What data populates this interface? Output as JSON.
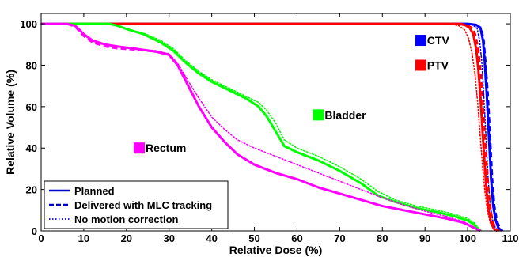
{
  "chart_data": {
    "type": "line",
    "xlabel": "Relative Dose (%)",
    "ylabel": "Relative Volume (%)",
    "xlim": [
      0,
      110
    ],
    "ylim": [
      0,
      105
    ],
    "xticks": [
      0,
      10,
      20,
      30,
      40,
      50,
      60,
      70,
      80,
      90,
      100,
      110
    ],
    "yticks": [
      0,
      20,
      40,
      60,
      80,
      100
    ],
    "grid": false,
    "legend_position": "bottom-left",
    "legend": [
      {
        "label": "Planned",
        "style": "solid"
      },
      {
        "label": "Delivered with MLC tracking",
        "style": "dashed"
      },
      {
        "label": "No motion correction",
        "style": "dotted"
      }
    ],
    "structures": [
      {
        "name": "CTV",
        "color": "#0000ff",
        "marker_at": [
          89,
          92
        ]
      },
      {
        "name": "PTV",
        "color": "#ff0000",
        "marker_at": [
          89,
          80
        ]
      },
      {
        "name": "Bladder",
        "color": "#00ff00",
        "marker_at": [
          65,
          56
        ]
      },
      {
        "name": "Rectum",
        "color": "#ff00ff",
        "marker_at": [
          23,
          40
        ]
      }
    ],
    "series": [
      {
        "structure": "CTV",
        "style": "solid",
        "points": [
          [
            0,
            100
          ],
          [
            100,
            100
          ],
          [
            102,
            99.5
          ],
          [
            103,
            98
          ],
          [
            103.6,
            92
          ],
          [
            104,
            82
          ],
          [
            104.5,
            65
          ],
          [
            105,
            45
          ],
          [
            105.5,
            25
          ],
          [
            106,
            12
          ],
          [
            106.6,
            5
          ],
          [
            107.2,
            1.5
          ],
          [
            108,
            0
          ]
        ]
      },
      {
        "structure": "CTV",
        "style": "dashed",
        "points": [
          [
            0,
            100
          ],
          [
            100,
            100
          ],
          [
            102,
            99.5
          ],
          [
            103.2,
            98
          ],
          [
            103.8,
            92
          ],
          [
            104.2,
            82
          ],
          [
            104.8,
            65
          ],
          [
            105.3,
            45
          ],
          [
            105.8,
            25
          ],
          [
            106.3,
            12
          ],
          [
            106.9,
            5
          ],
          [
            107.5,
            1.5
          ],
          [
            108.2,
            0
          ]
        ]
      },
      {
        "structure": "CTV",
        "style": "dotted",
        "points": [
          [
            0,
            100
          ],
          [
            99,
            100
          ],
          [
            101,
            99.5
          ],
          [
            102.2,
            98
          ],
          [
            102.8,
            92
          ],
          [
            103.3,
            82
          ],
          [
            103.8,
            65
          ],
          [
            104.3,
            45
          ],
          [
            104.8,
            25
          ],
          [
            105.3,
            12
          ],
          [
            105.9,
            5
          ],
          [
            106.5,
            1.5
          ],
          [
            107.2,
            0
          ]
        ]
      },
      {
        "structure": "PTV",
        "style": "solid",
        "points": [
          [
            0,
            100
          ],
          [
            98,
            100
          ],
          [
            99.5,
            99.3
          ],
          [
            100.5,
            98
          ],
          [
            101.3,
            95
          ],
          [
            102,
            88
          ],
          [
            102.5,
            78
          ],
          [
            103,
            65
          ],
          [
            103.5,
            48
          ],
          [
            104,
            32
          ],
          [
            104.5,
            18
          ],
          [
            105,
            9
          ],
          [
            105.5,
            4
          ],
          [
            106.2,
            1
          ],
          [
            107,
            0
          ]
        ]
      },
      {
        "structure": "PTV",
        "style": "dashed",
        "points": [
          [
            0,
            100
          ],
          [
            98.5,
            100
          ],
          [
            100,
            99.3
          ],
          [
            101,
            98
          ],
          [
            101.8,
            95
          ],
          [
            102.5,
            88
          ],
          [
            103,
            78
          ],
          [
            103.5,
            65
          ],
          [
            104,
            48
          ],
          [
            104.5,
            32
          ],
          [
            105,
            18
          ],
          [
            105.5,
            9
          ],
          [
            106,
            4
          ],
          [
            106.7,
            1
          ],
          [
            107.5,
            0
          ]
        ]
      },
      {
        "structure": "PTV",
        "style": "dotted",
        "points": [
          [
            0,
            100
          ],
          [
            96,
            100
          ],
          [
            98,
            99
          ],
          [
            99.3,
            97
          ],
          [
            100.2,
            93
          ],
          [
            101,
            86
          ],
          [
            101.7,
            76
          ],
          [
            102.3,
            63
          ],
          [
            102.9,
            47
          ],
          [
            103.5,
            31
          ],
          [
            104.1,
            18
          ],
          [
            104.7,
            9
          ],
          [
            105.3,
            4
          ],
          [
            106,
            1
          ],
          [
            107,
            0
          ]
        ]
      },
      {
        "structure": "Bladder",
        "style": "solid",
        "points": [
          [
            0,
            100
          ],
          [
            16,
            100
          ],
          [
            18,
            99
          ],
          [
            20,
            97.5
          ],
          [
            24,
            95
          ],
          [
            28,
            91
          ],
          [
            31,
            87
          ],
          [
            34,
            81
          ],
          [
            37,
            76
          ],
          [
            40,
            72
          ],
          [
            44,
            68
          ],
          [
            48,
            64
          ],
          [
            51,
            60
          ],
          [
            53,
            55
          ],
          [
            55,
            48
          ],
          [
            57,
            41
          ],
          [
            60,
            38
          ],
          [
            65,
            34
          ],
          [
            70,
            29
          ],
          [
            75,
            23
          ],
          [
            79,
            17
          ],
          [
            83,
            14
          ],
          [
            88,
            11
          ],
          [
            93,
            9
          ],
          [
            97,
            7
          ],
          [
            100,
            5
          ],
          [
            101.5,
            3
          ],
          [
            102.5,
            1
          ],
          [
            103,
            0
          ]
        ]
      },
      {
        "structure": "Bladder",
        "style": "dashed",
        "points": [
          [
            0,
            100
          ],
          [
            16,
            100
          ],
          [
            18,
            99
          ],
          [
            20,
            97.5
          ],
          [
            24,
            95
          ],
          [
            28,
            91
          ],
          [
            31,
            87
          ],
          [
            34,
            81
          ],
          [
            37,
            76
          ],
          [
            40,
            72
          ],
          [
            44,
            68
          ],
          [
            48,
            64
          ],
          [
            51,
            60
          ],
          [
            53,
            55
          ],
          [
            55,
            48
          ],
          [
            57,
            41
          ],
          [
            60,
            38
          ],
          [
            65,
            34
          ],
          [
            70,
            29
          ],
          [
            75,
            23
          ],
          [
            79,
            17
          ],
          [
            83,
            14
          ],
          [
            88,
            11
          ],
          [
            93,
            9
          ],
          [
            97,
            7
          ],
          [
            100,
            5
          ],
          [
            101.5,
            3
          ],
          [
            102.5,
            1
          ],
          [
            103,
            0
          ]
        ]
      },
      {
        "structure": "Bladder",
        "style": "dotted",
        "points": [
          [
            0,
            100
          ],
          [
            16,
            100
          ],
          [
            18,
            99
          ],
          [
            20,
            97.5
          ],
          [
            24,
            95.5
          ],
          [
            28,
            92
          ],
          [
            31,
            88
          ],
          [
            34,
            82
          ],
          [
            37,
            77
          ],
          [
            40,
            73
          ],
          [
            44,
            69
          ],
          [
            48,
            65
          ],
          [
            51,
            62
          ],
          [
            53,
            58
          ],
          [
            55,
            52
          ],
          [
            57,
            44
          ],
          [
            60,
            40
          ],
          [
            65,
            36
          ],
          [
            70,
            31
          ],
          [
            75,
            25
          ],
          [
            79,
            19
          ],
          [
            83,
            15
          ],
          [
            88,
            12
          ],
          [
            93,
            10
          ],
          [
            97,
            8
          ],
          [
            100,
            6
          ],
          [
            101.5,
            4
          ],
          [
            102.5,
            1.5
          ],
          [
            103.3,
            0
          ]
        ]
      },
      {
        "structure": "Rectum",
        "style": "solid",
        "points": [
          [
            0,
            100
          ],
          [
            6,
            100
          ],
          [
            8,
            99
          ],
          [
            10,
            95
          ],
          [
            12,
            92
          ],
          [
            15,
            90
          ],
          [
            18,
            89
          ],
          [
            22,
            88
          ],
          [
            27,
            86.5
          ],
          [
            30,
            85
          ],
          [
            32,
            80
          ],
          [
            34,
            72
          ],
          [
            37,
            60
          ],
          [
            40,
            50
          ],
          [
            43,
            43
          ],
          [
            46,
            37
          ],
          [
            50,
            32
          ],
          [
            55,
            28
          ],
          [
            60,
            25
          ],
          [
            65,
            21
          ],
          [
            70,
            18
          ],
          [
            75,
            15
          ],
          [
            80,
            12
          ],
          [
            85,
            10
          ],
          [
            90,
            8
          ],
          [
            95,
            6
          ],
          [
            99,
            4
          ],
          [
            101,
            2
          ],
          [
            102,
            1
          ],
          [
            103,
            0
          ]
        ]
      },
      {
        "structure": "Rectum",
        "style": "dashed",
        "points": [
          [
            0,
            100
          ],
          [
            6,
            100
          ],
          [
            8,
            98.5
          ],
          [
            10,
            94
          ],
          [
            12,
            91
          ],
          [
            15,
            89
          ],
          [
            18,
            88
          ],
          [
            22,
            87.5
          ],
          [
            27,
            86.5
          ],
          [
            30,
            85
          ],
          [
            32,
            80
          ],
          [
            34,
            72
          ],
          [
            37,
            60
          ],
          [
            40,
            50
          ],
          [
            43,
            43
          ],
          [
            46,
            37
          ],
          [
            50,
            32
          ],
          [
            55,
            28
          ],
          [
            60,
            25
          ],
          [
            65,
            21
          ],
          [
            70,
            18
          ],
          [
            75,
            15
          ],
          [
            80,
            12
          ],
          [
            85,
            10
          ],
          [
            90,
            8
          ],
          [
            95,
            6
          ],
          [
            99,
            4
          ],
          [
            101,
            2
          ],
          [
            102,
            1
          ],
          [
            103,
            0
          ]
        ]
      },
      {
        "structure": "Rectum",
        "style": "dotted",
        "points": [
          [
            0,
            100
          ],
          [
            6,
            100
          ],
          [
            8,
            99
          ],
          [
            10,
            95
          ],
          [
            12,
            92
          ],
          [
            15,
            90
          ],
          [
            18,
            89
          ],
          [
            22,
            88
          ],
          [
            27,
            87
          ],
          [
            30,
            85.5
          ],
          [
            32,
            81
          ],
          [
            34,
            74
          ],
          [
            37,
            64
          ],
          [
            40,
            55
          ],
          [
            43,
            49
          ],
          [
            46,
            44
          ],
          [
            50,
            40
          ],
          [
            55,
            36
          ],
          [
            60,
            32
          ],
          [
            65,
            28
          ],
          [
            70,
            24
          ],
          [
            75,
            20
          ],
          [
            80,
            16
          ],
          [
            85,
            12.5
          ],
          [
            90,
            9.5
          ],
          [
            95,
            7
          ],
          [
            99,
            4.5
          ],
          [
            101,
            2.5
          ],
          [
            102,
            1
          ],
          [
            103,
            0
          ]
        ]
      }
    ]
  }
}
